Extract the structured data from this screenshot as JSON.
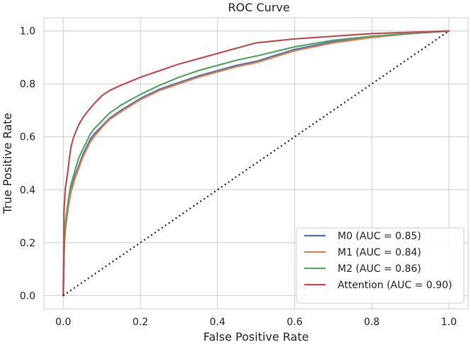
{
  "chart_data": {
    "type": "line",
    "title": "ROC Curve",
    "xlabel": "False Positive Rate",
    "ylabel": "True Positive Rate",
    "xlim": [
      -0.05,
      1.05
    ],
    "ylim": [
      -0.05,
      1.05
    ],
    "grid": true,
    "xticks": [
      "0.0",
      "0.2",
      "0.4",
      "0.6",
      "0.8",
      "1.0"
    ],
    "yticks": [
      "0.0",
      "0.2",
      "0.4",
      "0.6",
      "0.8",
      "1.0"
    ],
    "legend_position": "lower-right",
    "series": [
      {
        "name": "M0",
        "label": "M0 (AUC = 0.85)",
        "color": "#4c72b0",
        "x": [
          0,
          0.003,
          0.006,
          0.01,
          0.015,
          0.02,
          0.03,
          0.04,
          0.05,
          0.06,
          0.07,
          0.08,
          0.1,
          0.12,
          0.15,
          0.2,
          0.25,
          0.3,
          0.35,
          0.4,
          0.45,
          0.5,
          0.6,
          0.7,
          0.8,
          0.9,
          1.0
        ],
        "y": [
          0,
          0.2,
          0.26,
          0.31,
          0.36,
          0.4,
          0.45,
          0.49,
          0.53,
          0.56,
          0.59,
          0.61,
          0.64,
          0.67,
          0.7,
          0.745,
          0.78,
          0.805,
          0.83,
          0.85,
          0.87,
          0.885,
          0.93,
          0.96,
          0.98,
          0.99,
          1.0
        ]
      },
      {
        "name": "M1",
        "label": "M1 (AUC = 0.84)",
        "color": "#dd8452",
        "x": [
          0,
          0.003,
          0.006,
          0.01,
          0.015,
          0.02,
          0.03,
          0.04,
          0.05,
          0.06,
          0.07,
          0.08,
          0.1,
          0.12,
          0.15,
          0.2,
          0.25,
          0.3,
          0.35,
          0.4,
          0.45,
          0.5,
          0.6,
          0.7,
          0.8,
          0.9,
          1.0
        ],
        "y": [
          0,
          0.19,
          0.25,
          0.3,
          0.35,
          0.39,
          0.44,
          0.48,
          0.52,
          0.55,
          0.58,
          0.6,
          0.635,
          0.665,
          0.695,
          0.74,
          0.775,
          0.8,
          0.825,
          0.845,
          0.865,
          0.88,
          0.925,
          0.955,
          0.975,
          0.99,
          1.0
        ]
      },
      {
        "name": "M2",
        "label": "M2 (AUC = 0.86)",
        "color": "#55a868",
        "x": [
          0,
          0.003,
          0.006,
          0.01,
          0.015,
          0.02,
          0.03,
          0.04,
          0.05,
          0.06,
          0.07,
          0.08,
          0.1,
          0.12,
          0.15,
          0.2,
          0.25,
          0.3,
          0.35,
          0.4,
          0.45,
          0.5,
          0.6,
          0.7,
          0.8,
          0.9,
          1.0
        ],
        "y": [
          0,
          0.22,
          0.28,
          0.33,
          0.38,
          0.42,
          0.47,
          0.52,
          0.55,
          0.58,
          0.61,
          0.63,
          0.66,
          0.69,
          0.72,
          0.76,
          0.795,
          0.825,
          0.85,
          0.87,
          0.89,
          0.905,
          0.94,
          0.965,
          0.98,
          0.99,
          1.0
        ]
      },
      {
        "name": "Attention",
        "label": "Attention (AUC = 0.90)",
        "color": "#c44e52",
        "x": [
          0,
          0.002,
          0.005,
          0.008,
          0.012,
          0.016,
          0.02,
          0.025,
          0.03,
          0.04,
          0.05,
          0.06,
          0.08,
          0.1,
          0.12,
          0.15,
          0.2,
          0.25,
          0.3,
          0.35,
          0.4,
          0.45,
          0.5,
          0.6,
          0.7,
          0.8,
          0.9,
          1.0
        ],
        "y": [
          0,
          0.32,
          0.4,
          0.43,
          0.47,
          0.52,
          0.56,
          0.59,
          0.61,
          0.645,
          0.67,
          0.69,
          0.725,
          0.755,
          0.775,
          0.795,
          0.825,
          0.85,
          0.875,
          0.895,
          0.915,
          0.935,
          0.955,
          0.97,
          0.98,
          0.99,
          0.995,
          1.0
        ]
      },
      {
        "name": "Chance",
        "label": "",
        "color": "#262626",
        "dashed": true,
        "x": [
          0,
          1
        ],
        "y": [
          0,
          1
        ]
      }
    ]
  }
}
